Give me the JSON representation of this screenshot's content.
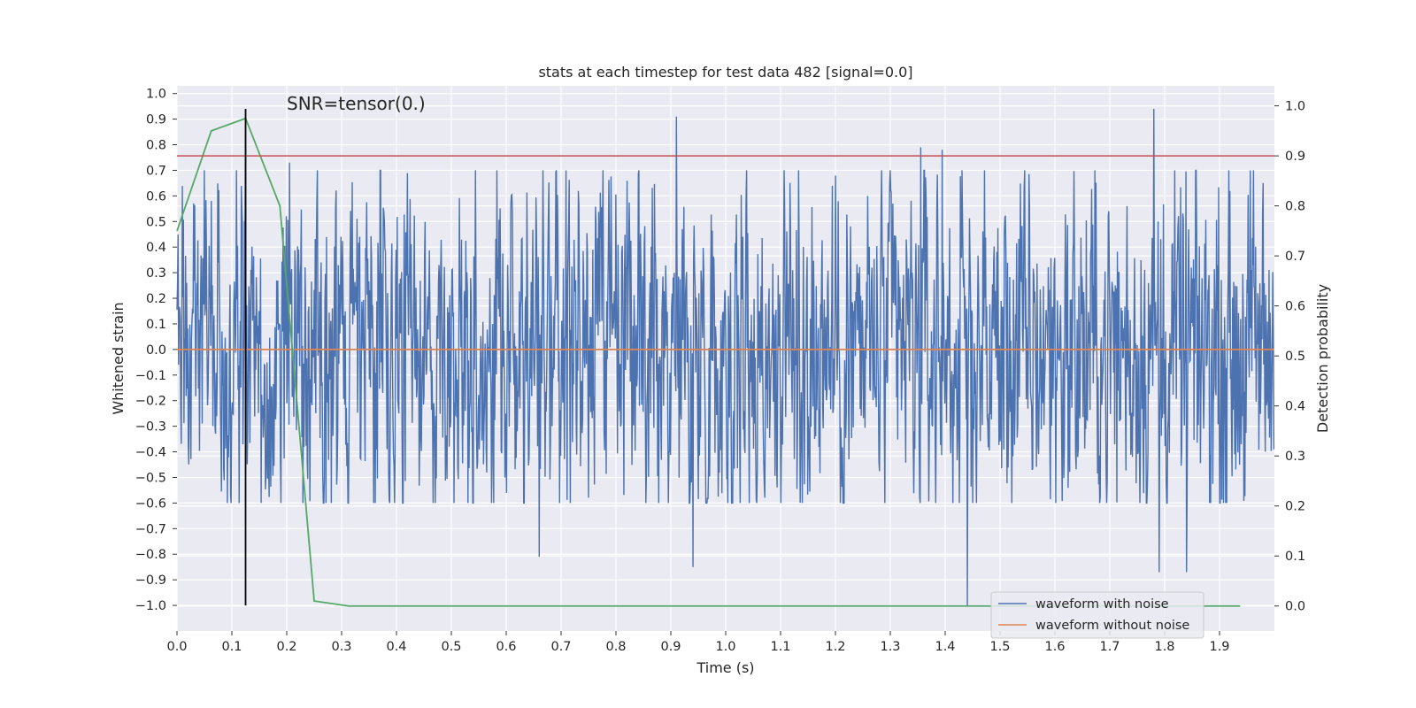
{
  "chart_data": {
    "type": "line",
    "title": "stats at each timestep for test data 482 [signal=0.0]",
    "xlabel": "Time (s)",
    "ylabel": "Whitened strain",
    "y2label": "Detection probability",
    "xlim": [
      0.0,
      2.0
    ],
    "ylim": [
      -1.1,
      1.03
    ],
    "y2lim": [
      -0.05,
      1.04
    ],
    "x_ticks": [
      "0.0",
      "0.1",
      "0.2",
      "0.3",
      "0.4",
      "0.5",
      "0.6",
      "0.7",
      "0.8",
      "0.9",
      "1.0",
      "1.1",
      "1.2",
      "1.3",
      "1.4",
      "1.5",
      "1.6",
      "1.7",
      "1.8",
      "1.9"
    ],
    "y_ticks": [
      "1.0",
      "0.9",
      "0.8",
      "0.7",
      "0.6",
      "0.5",
      "0.4",
      "0.3",
      "0.2",
      "0.1",
      "0.0",
      "-0.1",
      "-0.2",
      "-0.3",
      "-0.4",
      "-0.5",
      "-0.6",
      "-0.7",
      "-0.8",
      "-0.9",
      "-1.0"
    ],
    "y2_ticks": [
      "1.0",
      "0.9",
      "0.8",
      "0.7",
      "0.6",
      "0.5",
      "0.4",
      "0.3",
      "0.2",
      "0.1",
      "0.0"
    ],
    "grid": true,
    "legend_position": "lower-right",
    "annotation": "SNR=tensor(0.)",
    "series": [
      {
        "name": "waveform with noise",
        "color": "#4c72b0",
        "axis": "left",
        "x_range": [
          0.0,
          1.999
        ],
        "samples": 2048,
        "envelope": [
          0.7,
          -0.6
        ],
        "peaks": [
          {
            "x": 0.125,
            "y": 0.88
          },
          {
            "x": 0.205,
            "y": 0.73
          },
          {
            "x": 0.91,
            "y": 0.91
          },
          {
            "x": 0.94,
            "y": -0.85
          },
          {
            "x": 0.66,
            "y": -0.81
          },
          {
            "x": 1.355,
            "y": 0.79
          },
          {
            "x": 1.395,
            "y": 0.78
          },
          {
            "x": 1.44,
            "y": -1.0
          },
          {
            "x": 1.78,
            "y": 0.94
          },
          {
            "x": 1.79,
            "y": -0.87
          },
          {
            "x": 1.84,
            "y": -0.87
          }
        ]
      },
      {
        "name": "waveform without noise",
        "color": "#dd8452",
        "axis": "left",
        "x": [
          0.0,
          1.999
        ],
        "y": [
          0.0,
          0.0
        ]
      },
      {
        "name": "",
        "color": "#55a868",
        "axis": "right",
        "x": [
          0.0,
          0.0625,
          0.125,
          0.1875,
          0.25,
          0.3125,
          0.375,
          1.9375
        ],
        "y": [
          0.75,
          0.95,
          0.975,
          0.8,
          0.01,
          0.0,
          0.0,
          0.0
        ]
      }
    ],
    "threshold": {
      "axis": "right",
      "y": 0.9,
      "color": "#c44e52"
    },
    "marker_line": {
      "x": 0.125,
      "y_top": 0.94,
      "y_bottom": -1.0,
      "color": "#000000"
    }
  }
}
